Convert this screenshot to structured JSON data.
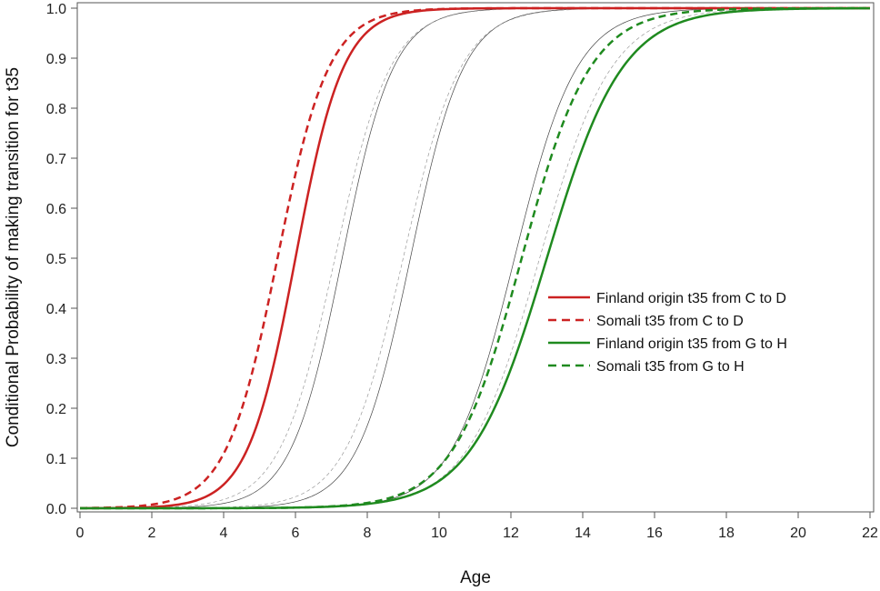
{
  "chart_data": {
    "type": "line",
    "title": "",
    "xlabel": "Age",
    "ylabel": "Conditional Probability of making transition for t35",
    "xlim": [
      0,
      22
    ],
    "ylim": [
      0,
      1
    ],
    "x_ticks": [
      0,
      2,
      4,
      6,
      8,
      10,
      12,
      14,
      16,
      18,
      20,
      22
    ],
    "y_ticks": [
      0.0,
      0.1,
      0.2,
      0.3,
      0.4,
      0.5,
      0.6,
      0.7,
      0.8,
      0.9,
      1.0
    ],
    "grid": false,
    "legend_position": "right-center",
    "series": [
      {
        "name": "Finland origin t35 from C to D",
        "color": "#cc2222",
        "dash": "solid",
        "width": 2.5,
        "legend": true,
        "midpoint": 6.0,
        "slope": 1.5
      },
      {
        "name": "Somali t35 from C to D",
        "color": "#cc2222",
        "dash": "dashed",
        "width": 2.5,
        "legend": true,
        "midpoint": 5.5,
        "slope": 1.4
      },
      {
        "name": "Finland origin t35 from G to H",
        "color": "#1f8a1f",
        "dash": "solid",
        "width": 2.5,
        "legend": true,
        "midpoint": 13.0,
        "slope": 0.95
      },
      {
        "name": "Somali t35 from G to H",
        "color": "#1f8a1f",
        "dash": "dashed",
        "width": 2.5,
        "legend": true,
        "midpoint": 12.3,
        "slope": 1.05
      },
      {
        "name": "",
        "color": "#444444",
        "dash": "solid",
        "width": 0.7,
        "legend": false,
        "midpoint": 7.3,
        "slope": 1.4
      },
      {
        "name": "",
        "color": "#999999",
        "dash": "dashed",
        "width": 0.7,
        "legend": false,
        "midpoint": 7.1,
        "slope": 1.3
      },
      {
        "name": "",
        "color": "#444444",
        "dash": "solid",
        "width": 0.7,
        "legend": false,
        "midpoint": 9.2,
        "slope": 1.35
      },
      {
        "name": "",
        "color": "#999999",
        "dash": "dashed",
        "width": 0.7,
        "legend": false,
        "midpoint": 9.0,
        "slope": 1.25
      },
      {
        "name": "",
        "color": "#444444",
        "dash": "solid",
        "width": 0.7,
        "legend": false,
        "midpoint": 12.1,
        "slope": 1.15
      },
      {
        "name": "",
        "color": "#999999",
        "dash": "dashed",
        "width": 0.7,
        "legend": false,
        "midpoint": 12.8,
        "slope": 1.0
      }
    ]
  }
}
